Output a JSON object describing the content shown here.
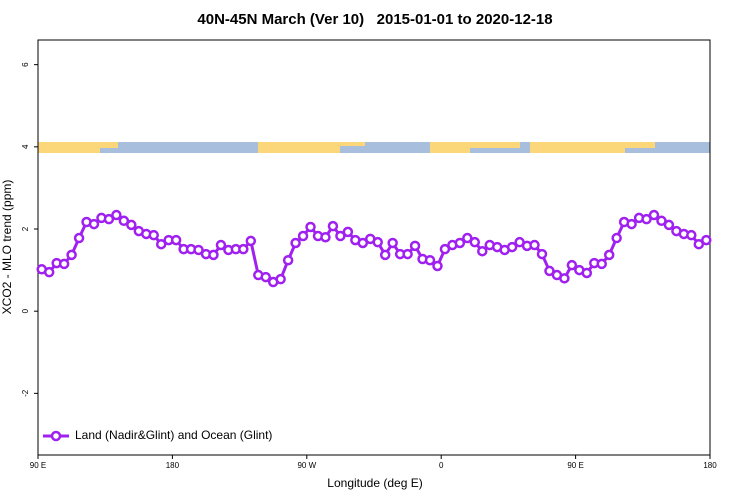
{
  "chart_data": {
    "type": "line",
    "title": "40N-45N March (Ver 10)   2015-01-01 to 2020-12-18",
    "x_label": "Longitude (deg E)",
    "y_label": "XCO2 - MLO trend (ppm)",
    "xlim": [
      90,
      540
    ],
    "ylim": [
      -3.5,
      6.6
    ],
    "xticks": [
      {
        "value": 90,
        "label": "90 E"
      },
      180,
      {
        "value": 270,
        "label": "90 W"
      },
      {
        "value": 360,
        "label": "0"
      },
      {
        "value": 450,
        "label": "90 E"
      },
      {
        "value": 540,
        "label": "180"
      }
    ],
    "yticks": [
      -2,
      0,
      2,
      4,
      6
    ],
    "legend": "bottom-left",
    "x": [
      92.5,
      97.5,
      102.5,
      107.5,
      112.5,
      117.5,
      122.5,
      127.5,
      132.5,
      137.5,
      142.5,
      147.5,
      152.5,
      157.5,
      162.5,
      167.5,
      172.5,
      177.5,
      182.5,
      187.5,
      192.5,
      197.5,
      202.5,
      207.5,
      212.5,
      217.5,
      222.5,
      227.5,
      232.5,
      237.5,
      242.5,
      247.5,
      252.5,
      257.5,
      262.5,
      267.5,
      272.5,
      277.5,
      282.5,
      287.5,
      292.5,
      297.5,
      302.5,
      307.5,
      312.5,
      317.5,
      322.5,
      327.5,
      332.5,
      337.5,
      342.5,
      347.5,
      352.5,
      357.5,
      362.5,
      367.5,
      372.5,
      377.5,
      382.5,
      387.5,
      392.5,
      397.5,
      402.5,
      407.5,
      412.5,
      417.5,
      422.5,
      427.5,
      432.5,
      437.5,
      442.5,
      447.5,
      452.5,
      457.5,
      462.5,
      467.5,
      472.5,
      477.5,
      482.5,
      487.5,
      492.5,
      497.5,
      502.5,
      507.5,
      512.5,
      517.5,
      522.5,
      527.5,
      532.5,
      537.5
    ],
    "series": [
      {
        "name": "Land (Nadir&Glint) and Ocean (Glint)",
        "color": "#a020f0",
        "values": [
          1.02,
          0.95,
          1.17,
          1.15,
          1.37,
          1.78,
          2.17,
          2.12,
          2.27,
          2.24,
          2.34,
          2.2,
          2.1,
          1.95,
          1.88,
          1.85,
          1.63,
          1.73,
          1.73,
          1.51,
          1.51,
          1.49,
          1.39,
          1.37,
          1.61,
          1.49,
          1.51,
          1.51,
          1.71,
          0.88,
          0.83,
          0.71,
          0.78,
          1.24,
          1.66,
          1.83,
          2.05,
          1.83,
          1.8,
          2.07,
          1.83,
          1.93,
          1.73,
          1.66,
          1.76,
          1.68,
          1.37,
          1.66,
          1.39,
          1.39,
          1.59,
          1.27,
          1.24,
          1.1,
          1.51,
          1.61,
          1.66,
          1.78,
          1.68,
          1.46,
          1.61,
          1.56,
          1.49,
          1.56,
          1.68,
          1.59,
          1.61,
          1.39,
          0.98,
          0.88,
          0.8,
          1.12,
          1.0,
          0.93,
          1.17,
          1.15,
          1.37,
          1.78,
          2.17,
          2.12,
          2.27,
          2.24,
          2.34,
          2.2,
          2.1,
          1.95,
          1.88,
          1.85,
          1.63,
          1.73
        ]
      }
    ]
  }
}
